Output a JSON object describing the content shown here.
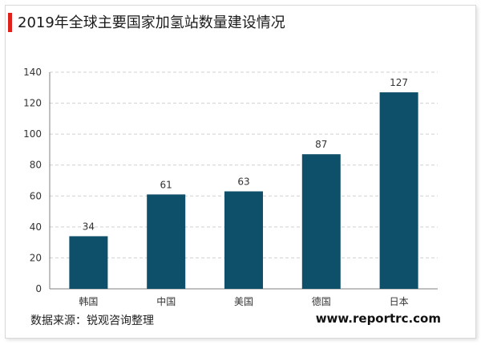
{
  "title": "2019年全球主要国家加氢站数量建设情况",
  "source": "数据来源：锐观咨询整理",
  "website": "www.reportrc.com",
  "colors": {
    "bar": "#0e4f6a",
    "accent": "#e0201b",
    "grid": "#d0d0d0",
    "axis": "#808080"
  },
  "chart_data": {
    "type": "bar",
    "categories": [
      "韩国",
      "中国",
      "美国",
      "德国",
      "日本"
    ],
    "values": [
      34,
      61,
      63,
      87,
      127
    ],
    "ylim": [
      0,
      140
    ],
    "yticks": [
      0,
      20,
      40,
      60,
      80,
      100,
      120,
      140
    ],
    "grid": true
  }
}
